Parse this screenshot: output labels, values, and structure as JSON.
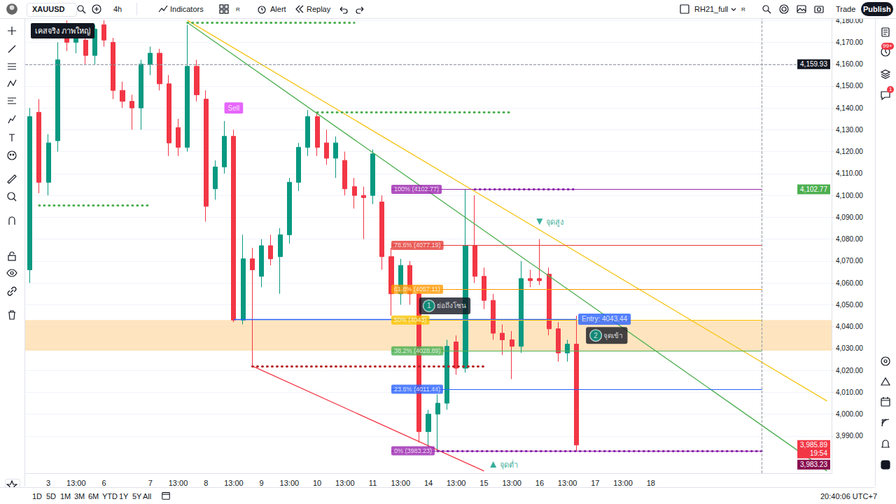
{
  "chart_data": {
    "type": "candlestick",
    "title": "เคสจริง ภาพใหญ่",
    "x": [
      null,
      null,
      "3",
      null,
      null,
      "13:00",
      null,
      null,
      "6",
      null,
      null,
      null,
      null,
      "7",
      null,
      null,
      "13:00",
      null,
      null,
      "8",
      null,
      null,
      "13:00",
      null,
      null,
      "9",
      null,
      null,
      "13:00",
      null,
      null,
      "10",
      null,
      null,
      "13:00",
      null,
      null,
      "11",
      null,
      null,
      "13:00",
      null,
      null,
      "14",
      null,
      null,
      "13:00",
      null,
      null,
      "15",
      null,
      null,
      "13:00",
      null,
      null,
      "16",
      null,
      null,
      "13:00",
      null,
      null,
      "17",
      null,
      null,
      "13:00",
      null,
      null,
      "18",
      null,
      null,
      null,
      null,
      null,
      null,
      null,
      null,
      null,
      null,
      null,
      null,
      null,
      null,
      null,
      null,
      null,
      null,
      null
    ],
    "ohlc": [
      [
        4066,
        4140,
        4060,
        4136
      ],
      [
        4138,
        4144,
        4101,
        4106
      ],
      [
        4106,
        4128,
        4100,
        4124
      ],
      [
        4125,
        4170,
        4120,
        4162
      ],
      [
        4175,
        4180,
        4166,
        4170
      ],
      [
        4170,
        4178,
        4165,
        4176
      ],
      [
        4171,
        4174,
        4160,
        4164
      ],
      [
        4164,
        4178,
        4160,
        4176
      ],
      [
        4178,
        4180,
        4168,
        4171
      ],
      [
        4170,
        4172,
        4144,
        4148
      ],
      [
        4148,
        4152,
        4140,
        4143
      ],
      [
        4143,
        4146,
        4130,
        4140
      ],
      [
        4140,
        4162,
        4130,
        4160
      ],
      [
        4160,
        4168,
        4155,
        4165
      ],
      [
        4165,
        4167,
        4148,
        4151
      ],
      [
        4151,
        4155,
        4118,
        4124
      ],
      [
        4131,
        4135,
        4118,
        4122
      ],
      [
        4122,
        4178,
        4120,
        4159
      ],
      [
        4159,
        4162,
        4143,
        4146
      ],
      [
        4144,
        4148,
        4088,
        4095
      ],
      [
        4103,
        4116,
        4098,
        4113
      ],
      [
        4113,
        4134,
        4110,
        4127
      ],
      [
        4127,
        4130,
        4042,
        4043
      ],
      [
        4043,
        4082,
        4041,
        4071
      ],
      [
        4071,
        4076,
        4022,
        4066
      ],
      [
        4063,
        4080,
        4058,
        4077
      ],
      [
        4077,
        4082,
        4068,
        4071
      ],
      [
        4072,
        4085,
        4055,
        4082
      ],
      [
        4082,
        4108,
        4078,
        4106
      ],
      [
        4106,
        4124,
        4102,
        4122
      ],
      [
        4122,
        4139,
        4118,
        4136
      ],
      [
        4136,
        4138,
        4118,
        4122
      ],
      [
        4124,
        4130,
        4114,
        4117
      ],
      [
        4117,
        4127,
        4108,
        4124
      ],
      [
        4116,
        4120,
        4100,
        4103
      ],
      [
        4104,
        4108,
        4094,
        4100
      ],
      [
        4100,
        4104,
        4080,
        4099
      ],
      [
        4100,
        4121,
        4096,
        4119
      ],
      [
        4097,
        4100,
        4066,
        4072
      ],
      [
        4072,
        4076,
        4045,
        4055
      ],
      [
        4055,
        4071,
        4050,
        4068
      ],
      [
        4068,
        4070,
        4050,
        4055
      ],
      [
        4055,
        4058,
        3987,
        3992
      ],
      [
        3992,
        4002,
        3985,
        4000
      ],
      [
        4000,
        4009,
        3983.23,
        4005
      ],
      [
        4005,
        4034,
        4002,
        4031
      ],
      [
        4033,
        4036,
        4018,
        4021
      ],
      [
        4021,
        4102.77,
        4019,
        4077
      ],
      [
        4077,
        4100,
        4060,
        4063
      ],
      [
        4063,
        4067,
        4048,
        4052
      ],
      [
        4052,
        4055,
        4034,
        4037
      ],
      [
        4037,
        4041,
        4027,
        4034
      ],
      [
        4034,
        4038,
        4016,
        4031
      ],
      [
        4031,
        4070,
        4028,
        4062
      ],
      [
        4062,
        4066,
        4058,
        4061
      ],
      [
        4062,
        4080,
        4059,
        4061
      ],
      [
        4064,
        4067,
        4036,
        4039
      ],
      [
        4039,
        4042,
        4024,
        4028
      ],
      [
        4028,
        4034,
        4024,
        4032
      ],
      [
        4032,
        4045,
        3983.23,
        3985.89
      ],
      null,
      null,
      null,
      null,
      null,
      null,
      null,
      null,
      null,
      null,
      null,
      null,
      null,
      null,
      null,
      null,
      null,
      null,
      null,
      null,
      null,
      null,
      null,
      null,
      null,
      null,
      null
    ],
    "ylim": [
      3973,
      4181
    ],
    "yticks": [
      {
        "value": 3990,
        "label": "3,990.00"
      },
      {
        "value": 4000,
        "label": "4,000.00"
      },
      {
        "value": 4010,
        "label": "4,010.00"
      },
      {
        "value": 4020,
        "label": "4,020.00"
      },
      {
        "value": 4030,
        "label": "4,030.00"
      },
      {
        "value": 4040,
        "label": "4,040.00"
      },
      {
        "value": 4050,
        "label": "4,050.00"
      },
      {
        "value": 4060,
        "label": "4,060.00"
      },
      {
        "value": 4070,
        "label": "4,070.00"
      },
      {
        "value": 4080,
        "label": "4,080.00"
      },
      {
        "value": 4090,
        "label": "4,090.00"
      },
      {
        "value": 4100,
        "label": "4,100.00"
      },
      {
        "value": 4110,
        "label": "4,110.00"
      },
      {
        "value": 4120,
        "label": "4,120.00"
      },
      {
        "value": 4130,
        "label": "4,130.00"
      },
      {
        "value": 4140,
        "label": "4,140.00"
      },
      {
        "value": 4150,
        "label": "4,150.00"
      },
      {
        "value": 4160,
        "label": "4,160.00"
      },
      {
        "value": 4170,
        "label": "4,170.00"
      },
      {
        "value": 4180,
        "label": "4,180.00"
      }
    ],
    "grid": true,
    "zone": {
      "from": 4029,
      "to": 4043,
      "color": "#ffcc80"
    },
    "fib": {
      "from": 39,
      "to": 79,
      "levels": [
        {
          "label": "100% (4102.77)",
          "value": 4102.77,
          "color": "#9c27b0"
        },
        {
          "label": "78.6% (4077.19)",
          "value": 4077.19,
          "color": "#e53935"
        },
        {
          "label": "61.8% (4057.11)",
          "value": 4057.11,
          "color": "#ff9800"
        },
        {
          "label": "50% (4043)",
          "value": 4043,
          "color": "#f9c400"
        },
        {
          "label": "38.2% (4028.89)",
          "value": 4028.89,
          "color": "#4caf50"
        },
        {
          "label": "23.6% (4011.44)",
          "value": 4011.44,
          "color": "#2962ff"
        },
        {
          "label": "0% (3983.23)",
          "value": 3983.23,
          "color": "#9c27b0"
        }
      ]
    },
    "lines": [
      {
        "from": [
          17,
          4179
        ],
        "to": [
          86,
          3974
        ],
        "color": "#4caf50",
        "line_style": "solid"
      },
      {
        "from": [
          17,
          4180
        ],
        "to": [
          86,
          4006
        ],
        "color": "#f5c518",
        "line_style": "solid"
      },
      {
        "from": [
          24,
          4022
        ],
        "to": [
          49,
          3974
        ],
        "color": "#f23645",
        "line_style": "solid"
      },
      {
        "from": [
          22,
          4043.44
        ],
        "to": [
          59,
          4043.44
        ],
        "color": "#2962ff",
        "line_style": "solid"
      },
      {
        "from": [
          17,
          4179
        ],
        "to": [
          35,
          4179
        ],
        "color": "#4caf50",
        "line_style": "dotted"
      },
      {
        "from": [
          31,
          4138
        ],
        "to": [
          52,
          4138
        ],
        "color": "#4caf50",
        "line_style": "dotted"
      },
      {
        "from": [
          1,
          4095.5
        ],
        "to": [
          13,
          4095.5
        ],
        "color": "#4caf50",
        "line_style": "dotted"
      },
      {
        "from": [
          24,
          4022
        ],
        "to": [
          49,
          4022
        ],
        "color": "#b71c1c",
        "line_style": "dotted"
      },
      {
        "from": [
          48,
          4102.77
        ],
        "to": [
          59,
          4102.77
        ],
        "color": "#7b1fa2",
        "line_style": "dotted"
      },
      {
        "from": [
          44,
          3983.23
        ],
        "to": [
          79,
          3983.23
        ],
        "color": "#7b1fa2",
        "line_style": "dotted"
      }
    ],
    "annotations": [
      {
        "text": "Sell",
        "x": 22,
        "y": 4140,
        "marker": "tag",
        "color": "#e040fb"
      },
      {
        "text": "Entry: 4043.44",
        "x": 62,
        "y": 4043.44,
        "marker": "tag",
        "color": "#2962ff"
      },
      {
        "number": 1,
        "text": "ย่อถึงโซน",
        "x": 42,
        "y": 4049.5,
        "marker": "box",
        "color": "#089981"
      },
      {
        "number": 2,
        "text": "จุดเข้า",
        "x": 60,
        "y": 4036,
        "marker": "box",
        "color": "#089981"
      },
      {
        "text": "จุดสูง",
        "x": 55,
        "y": 4088,
        "marker": "triangle-down",
        "color": "#089981"
      },
      {
        "text": "จุดต่ำ",
        "x": 50,
        "y": 3977,
        "marker": "triangle-up",
        "color": "#089981"
      }
    ],
    "crosshair": {
      "x": 79,
      "y": 4159.93,
      "label": "4,159.93"
    },
    "price_tags": [
      {
        "value": 4102.77,
        "label": "4,102.77",
        "color": "#4caf50"
      },
      {
        "value": 3985.89,
        "label": "3,985.89",
        "sublabel": "19:54",
        "color": "#f23645"
      },
      {
        "value": 3983.23,
        "label": "3,983.23",
        "color": "#880e4f"
      }
    ]
  },
  "toolbar": {
    "symbol": "XAUUSD",
    "interval": "4h",
    "indicators": "Indicators",
    "flag": "R",
    "alert": "Alert",
    "replay": "Replay",
    "layout_name": "RH21_full",
    "trade": "Trade",
    "publish": "Publish"
  },
  "badges": [
    "99+",
    "1"
  ],
  "bottom_bar": {
    "ranges": [
      "1D",
      "5D",
      "1M",
      "3M",
      "6M",
      "YTD",
      "1Y",
      "5Y",
      "All"
    ],
    "clock": "20:40:06 UTC+7"
  }
}
